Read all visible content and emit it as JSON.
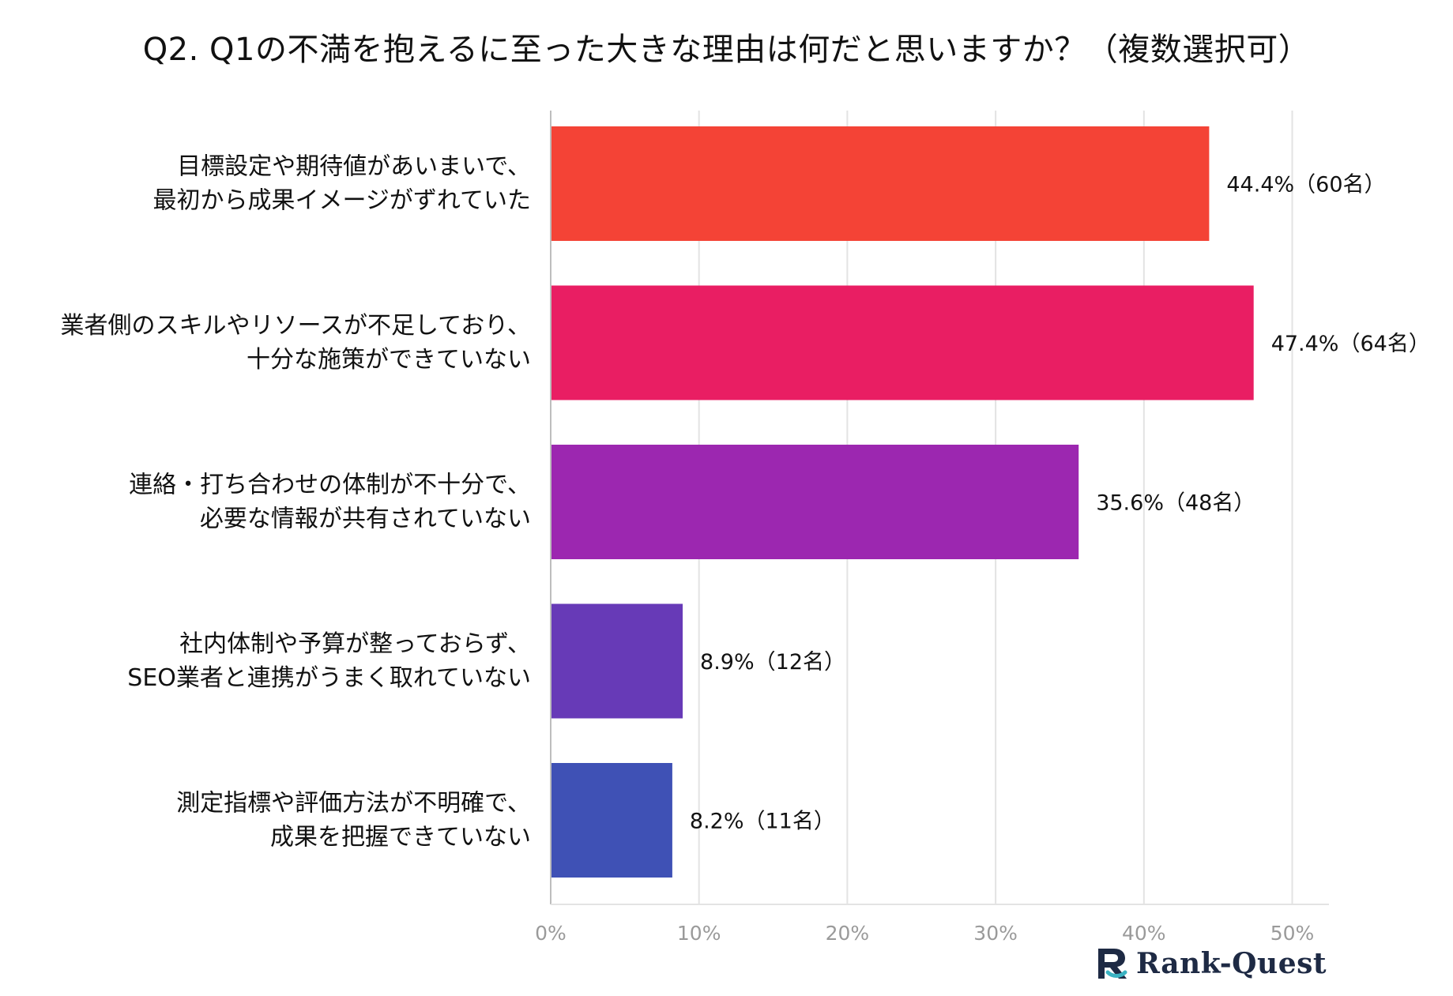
{
  "chart_data": {
    "type": "bar",
    "orientation": "horizontal",
    "title": "Q2. Q1の不満を抱えるに至った大きな理由は何だと思いますか？（複数選択可）",
    "categories": [
      [
        "目標設定や期待値があいまいで、",
        "最初から成果イメージがずれていた"
      ],
      [
        "業者側のスキルやリソースが不足しており、",
        "十分な施策ができていない"
      ],
      [
        "連絡・打ち合わせの体制が不十分で、",
        "必要な情報が共有されていない"
      ],
      [
        "社内体制や予算が整っておらず、",
        "SEO業者と連携がうまく取れていない"
      ],
      [
        "測定指標や評価方法が不明確で、",
        "成果を把握できていない"
      ]
    ],
    "values": [
      44.4,
      47.4,
      35.6,
      8.9,
      8.2
    ],
    "value_labels": [
      "44.4%（60名）",
      "47.4%（64名）",
      "35.6%（48名）",
      "8.9%（12名）",
      "8.2%（11名）"
    ],
    "colors": [
      "#f44336",
      "#e91e63",
      "#9c27b0",
      "#673ab7",
      "#3f51b5"
    ],
    "xlim": [
      0,
      52
    ],
    "x_ticks": [
      0,
      10,
      20,
      30,
      40,
      50
    ],
    "x_tick_labels": [
      "0%",
      "10%",
      "20%",
      "30%",
      "40%",
      "50%"
    ],
    "grid": true,
    "xlabel": "",
    "ylabel": ""
  },
  "branding": {
    "logo_name": "rank-quest-logo",
    "logo_text": "Rank-Quest",
    "logo_text_color": "#1e2a44",
    "logo_accent_color": "#3bb3c3"
  }
}
